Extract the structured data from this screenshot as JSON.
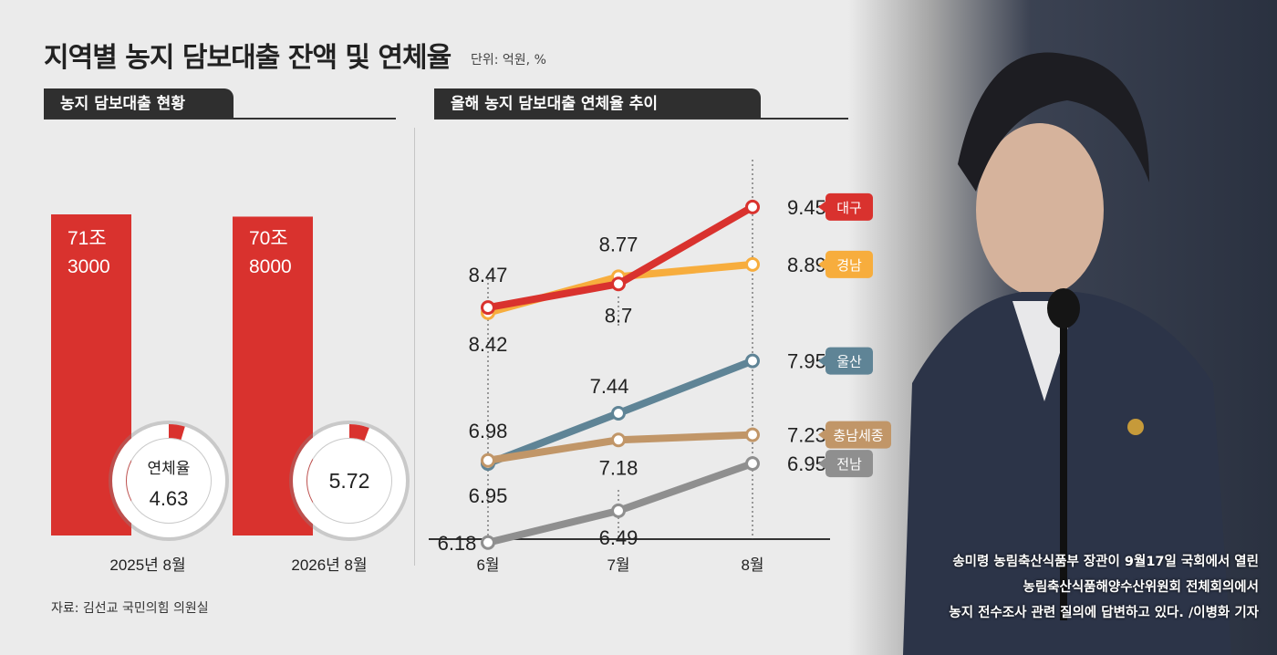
{
  "title": "지역별 농지 담보대출 잔액 및 연체율",
  "unit": "단위: 억원, %",
  "source": "자료: 김선교 국민의힘 의원실",
  "caption": [
    "송미령 농림축산식품부 장관이 9월17일 국회에서 열린",
    "농림축산식품해양수산위원회 전체회의에서",
    "농지 전수조사 관련 질의에 답변하고 있다. /이병화 기자"
  ],
  "colors": {
    "bar": "#d9322e",
    "ring_track": "#ffffff",
    "ring_value": "#d9322e",
    "대구": "#d9322e",
    "경남": "#f7ad3d",
    "울산": "#5f8496",
    "충남세종": "#c19668",
    "전남": "#8f8f8f"
  },
  "chart_data": [
    {
      "type": "bar",
      "title": "농지 담보대출 현황",
      "categories": [
        "2025년 8월",
        "2026년 8월"
      ],
      "values": [
        713000,
        708000
      ],
      "value_labels": [
        [
          "71조",
          "3000"
        ],
        [
          "70조",
          "8000"
        ]
      ],
      "delinquency_rate": [
        4.63,
        5.72
      ],
      "delinquency_label": "연체율"
    },
    {
      "type": "line",
      "title": "올해 농지 담보대출 연체율 추이",
      "categories": [
        "6월",
        "7월",
        "8월"
      ],
      "ylim": [
        5.6,
        10.4
      ],
      "series": [
        {
          "name": "대구",
          "values": [
            8.47,
            8.7,
            9.45
          ],
          "labels": [
            "8.47",
            "8.7",
            "9.45"
          ]
        },
        {
          "name": "경남",
          "values": [
            8.42,
            8.77,
            8.89
          ],
          "labels": [
            "8.42",
            "8.77",
            "8.89"
          ]
        },
        {
          "name": "울산",
          "values": [
            6.95,
            7.44,
            7.95
          ],
          "labels": [
            "6.95",
            "7.44",
            "7.95"
          ]
        },
        {
          "name": "충남세종",
          "values": [
            6.98,
            7.18,
            7.23
          ],
          "labels": [
            "6.98",
            "7.18",
            "7.23"
          ]
        },
        {
          "name": "전남",
          "values": [
            6.18,
            6.49,
            6.95
          ],
          "labels": [
            "6.18",
            "6.49",
            "6.95"
          ]
        }
      ]
    }
  ]
}
